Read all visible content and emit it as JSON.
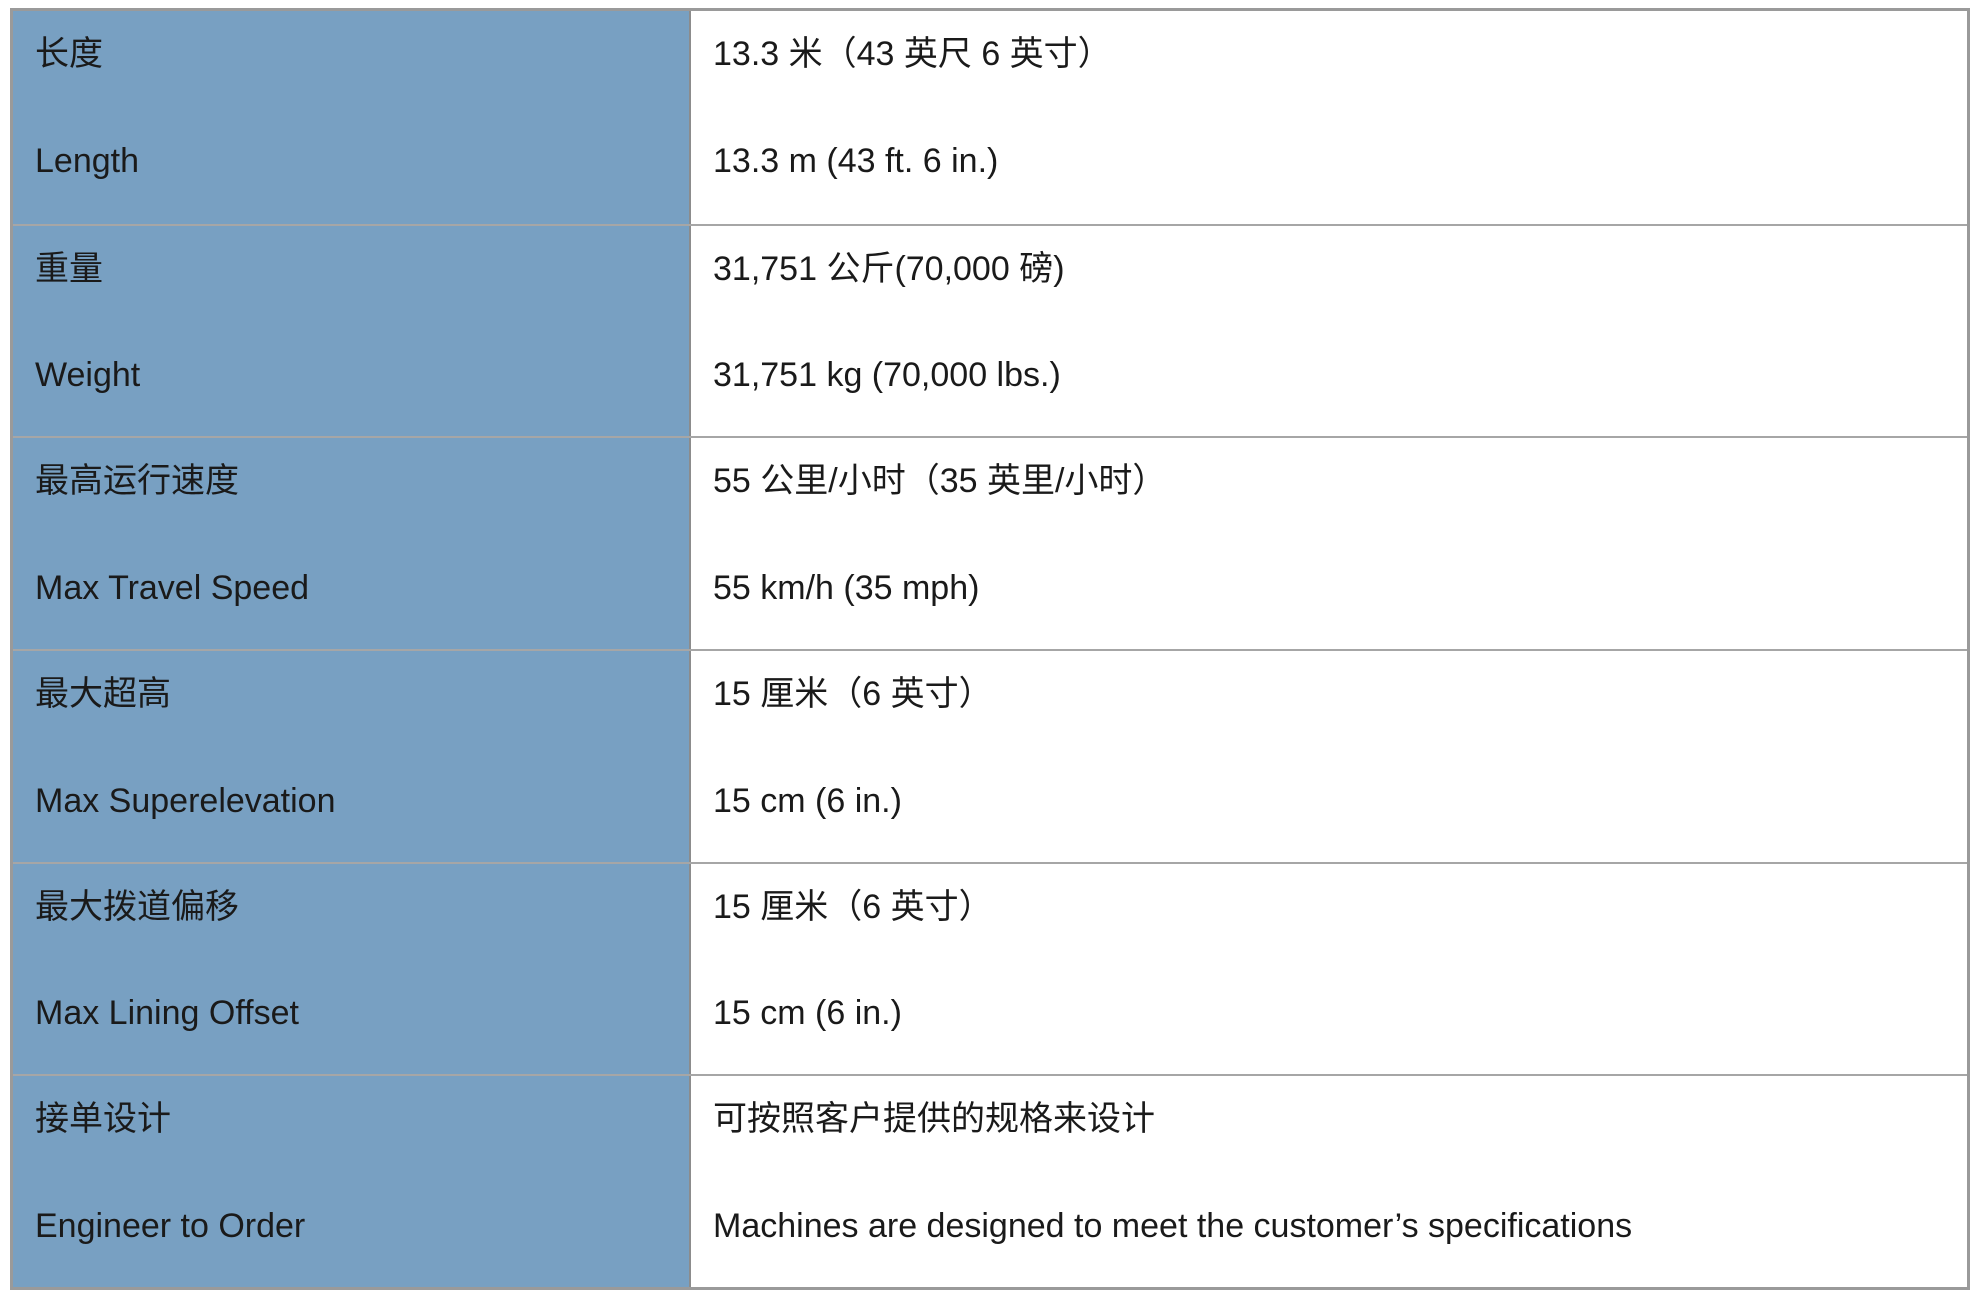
{
  "table": {
    "label_bg_color": "#78A0C2",
    "border_color": "#a6a6a6",
    "text_color": "#1a1a1a",
    "rows": [
      {
        "label_zh": "长度",
        "label_en": "Length",
        "value_zh": "13.3 米（43 英尺 6 英寸）",
        "value_en": "13.3 m (43 ft. 6 in.)"
      },
      {
        "label_zh": "重量",
        "label_en": "Weight",
        "value_zh": "31,751 公斤(70,000 磅)",
        "value_en": "31,751 kg (70,000 lbs.)"
      },
      {
        "label_zh": "最高运行速度",
        "label_en": "Max Travel Speed",
        "value_zh": "55 公里/小时（35 英里/小时）",
        "value_en": "55 km/h (35 mph)"
      },
      {
        "label_zh": "最大超高",
        "label_en": "Max Superelevation",
        "value_zh": "15 厘米（6 英寸）",
        "value_en": "15 cm (6 in.)"
      },
      {
        "label_zh": "最大拨道偏移",
        "label_en": "Max Lining Offset",
        "value_zh": "15 厘米（6 英寸）",
        "value_en": "15 cm (6 in.)"
      },
      {
        "label_zh": "接单设计",
        "label_en": "Engineer to Order",
        "value_zh": "可按照客户提供的规格来设计",
        "value_en": "Machines are designed to meet the customer’s specifications"
      }
    ]
  }
}
